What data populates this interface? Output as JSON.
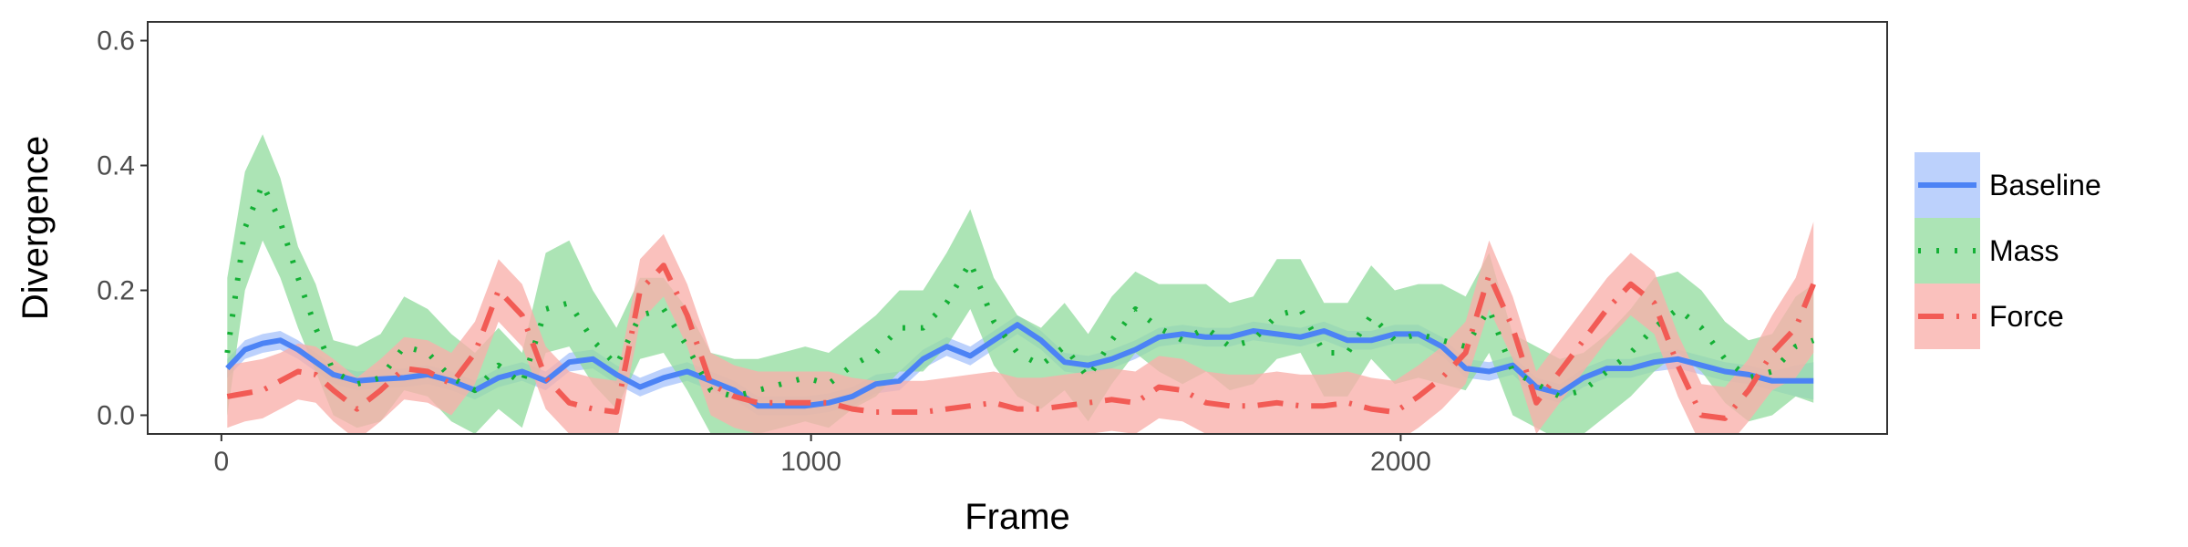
{
  "chart_data": {
    "type": "line",
    "title": "",
    "xlabel": "Frame",
    "ylabel": "Divergence",
    "xlim": [
      -125,
      2825
    ],
    "ylim": [
      -0.03,
      0.63
    ],
    "xticks": [
      0,
      1000,
      2000
    ],
    "xtick_labels": [
      "0",
      "1000",
      "2000"
    ],
    "yticks": [
      0.0,
      0.2,
      0.4,
      0.6
    ],
    "ytick_labels": [
      "0.0",
      "0.2",
      "0.4",
      "0.6"
    ],
    "grid": false,
    "legend_position": "right",
    "x": [
      10,
      40,
      70,
      100,
      130,
      160,
      190,
      230,
      270,
      310,
      350,
      390,
      430,
      470,
      510,
      550,
      590,
      630,
      670,
      710,
      750,
      790,
      830,
      870,
      910,
      950,
      990,
      1030,
      1070,
      1110,
      1150,
      1190,
      1230,
      1270,
      1310,
      1350,
      1390,
      1430,
      1470,
      1510,
      1550,
      1590,
      1630,
      1670,
      1710,
      1750,
      1790,
      1830,
      1870,
      1910,
      1950,
      1990,
      2030,
      2070,
      2110,
      2150,
      2190,
      2230,
      2270,
      2310,
      2350,
      2390,
      2430,
      2470,
      2510,
      2550,
      2590,
      2630,
      2670,
      2700
    ],
    "series": [
      {
        "name": "Baseline",
        "color": "#4c83f5",
        "fill": "#a9c4fb",
        "dash": "solid",
        "values": [
          0.075,
          0.105,
          0.115,
          0.12,
          0.105,
          0.085,
          0.065,
          0.055,
          0.058,
          0.06,
          0.065,
          0.055,
          0.04,
          0.06,
          0.07,
          0.055,
          0.085,
          0.09,
          0.065,
          0.045,
          0.06,
          0.07,
          0.055,
          0.04,
          0.015,
          0.015,
          0.015,
          0.02,
          0.03,
          0.05,
          0.055,
          0.09,
          0.11,
          0.095,
          0.12,
          0.145,
          0.12,
          0.085,
          0.08,
          0.09,
          0.105,
          0.125,
          0.13,
          0.125,
          0.125,
          0.135,
          0.13,
          0.125,
          0.135,
          0.12,
          0.12,
          0.13,
          0.13,
          0.11,
          0.075,
          0.07,
          0.08,
          0.045,
          0.035,
          0.06,
          0.075,
          0.075,
          0.085,
          0.09,
          0.08,
          0.07,
          0.065,
          0.055,
          0.055,
          0.055
        ],
        "lower": [
          0.06,
          0.09,
          0.1,
          0.105,
          0.09,
          0.07,
          0.05,
          0.04,
          0.043,
          0.045,
          0.05,
          0.04,
          0.025,
          0.045,
          0.055,
          0.04,
          0.07,
          0.075,
          0.05,
          0.03,
          0.045,
          0.055,
          0.04,
          0.025,
          0.0,
          0.0,
          0.0,
          0.005,
          0.015,
          0.035,
          0.04,
          0.075,
          0.095,
          0.08,
          0.105,
          0.13,
          0.105,
          0.07,
          0.065,
          0.075,
          0.09,
          0.11,
          0.115,
          0.11,
          0.11,
          0.12,
          0.115,
          0.11,
          0.12,
          0.105,
          0.105,
          0.115,
          0.115,
          0.095,
          0.06,
          0.055,
          0.065,
          0.03,
          0.02,
          0.045,
          0.06,
          0.06,
          0.07,
          0.075,
          0.065,
          0.055,
          0.05,
          0.04,
          0.03,
          0.025
        ],
        "upper": [
          0.09,
          0.12,
          0.13,
          0.135,
          0.12,
          0.1,
          0.08,
          0.07,
          0.073,
          0.075,
          0.08,
          0.07,
          0.055,
          0.075,
          0.085,
          0.07,
          0.1,
          0.105,
          0.08,
          0.06,
          0.075,
          0.085,
          0.07,
          0.055,
          0.03,
          0.03,
          0.03,
          0.035,
          0.045,
          0.065,
          0.07,
          0.105,
          0.125,
          0.11,
          0.135,
          0.16,
          0.135,
          0.1,
          0.095,
          0.105,
          0.12,
          0.14,
          0.145,
          0.14,
          0.14,
          0.15,
          0.145,
          0.14,
          0.15,
          0.135,
          0.135,
          0.145,
          0.145,
          0.125,
          0.09,
          0.085,
          0.095,
          0.06,
          0.05,
          0.075,
          0.09,
          0.09,
          0.1,
          0.105,
          0.095,
          0.085,
          0.08,
          0.07,
          0.08,
          0.085
        ]
      },
      {
        "name": "Mass",
        "color": "#14b035",
        "fill": "#95dda0",
        "dash": "dotted",
        "values": [
          0.1,
          0.3,
          0.37,
          0.31,
          0.22,
          0.14,
          0.07,
          0.05,
          0.06,
          0.11,
          0.1,
          0.06,
          0.04,
          0.08,
          0.05,
          0.17,
          0.18,
          0.12,
          0.08,
          0.16,
          0.17,
          0.11,
          0.04,
          0.03,
          0.04,
          0.05,
          0.06,
          0.05,
          0.08,
          0.1,
          0.14,
          0.14,
          0.18,
          0.245,
          0.15,
          0.1,
          0.08,
          0.11,
          0.06,
          0.12,
          0.17,
          0.14,
          0.12,
          0.14,
          0.11,
          0.12,
          0.16,
          0.17,
          0.1,
          0.1,
          0.16,
          0.12,
          0.13,
          0.12,
          0.11,
          0.17,
          0.07,
          0.05,
          0.03,
          0.04,
          0.07,
          0.1,
          0.14,
          0.17,
          0.14,
          0.09,
          0.06,
          0.07,
          0.11,
          0.12
        ],
        "lower": [
          0.0,
          0.2,
          0.28,
          0.22,
          0.14,
          0.07,
          0.0,
          -0.02,
          -0.01,
          0.04,
          0.03,
          -0.01,
          -0.03,
          0.01,
          -0.02,
          0.1,
          0.11,
          0.05,
          0.01,
          0.09,
          0.1,
          0.04,
          -0.03,
          -0.04,
          -0.03,
          -0.02,
          -0.01,
          -0.02,
          0.01,
          0.03,
          0.07,
          0.07,
          0.11,
          0.17,
          0.08,
          0.03,
          0.01,
          0.04,
          -0.01,
          0.05,
          0.1,
          0.07,
          0.05,
          0.07,
          0.04,
          0.05,
          0.09,
          0.1,
          0.03,
          0.03,
          0.09,
          0.05,
          0.06,
          0.05,
          0.04,
          0.1,
          0.0,
          -0.02,
          -0.04,
          -0.03,
          0.0,
          0.03,
          0.07,
          0.1,
          0.07,
          0.02,
          -0.01,
          0.0,
          0.03,
          0.02
        ],
        "upper": [
          0.22,
          0.39,
          0.45,
          0.38,
          0.27,
          0.21,
          0.12,
          0.11,
          0.13,
          0.19,
          0.17,
          0.13,
          0.1,
          0.14,
          0.1,
          0.26,
          0.28,
          0.2,
          0.14,
          0.22,
          0.22,
          0.17,
          0.1,
          0.09,
          0.09,
          0.1,
          0.11,
          0.1,
          0.13,
          0.16,
          0.2,
          0.2,
          0.26,
          0.33,
          0.22,
          0.16,
          0.14,
          0.18,
          0.13,
          0.19,
          0.23,
          0.21,
          0.21,
          0.21,
          0.18,
          0.19,
          0.25,
          0.25,
          0.18,
          0.18,
          0.24,
          0.2,
          0.21,
          0.21,
          0.19,
          0.26,
          0.13,
          0.11,
          0.09,
          0.1,
          0.13,
          0.17,
          0.22,
          0.23,
          0.2,
          0.15,
          0.12,
          0.13,
          0.19,
          0.21
        ]
      },
      {
        "name": "Force",
        "color": "#f25b55",
        "fill": "#f8b0ab",
        "dash": "dashdot",
        "values": [
          0.03,
          0.035,
          0.04,
          0.055,
          0.07,
          0.065,
          0.04,
          0.01,
          0.04,
          0.075,
          0.07,
          0.05,
          0.1,
          0.2,
          0.16,
          0.06,
          0.02,
          0.01,
          0.005,
          0.2,
          0.24,
          0.16,
          0.05,
          0.03,
          0.02,
          0.02,
          0.02,
          0.02,
          0.01,
          0.005,
          0.005,
          0.005,
          0.01,
          0.015,
          0.02,
          0.01,
          0.01,
          0.015,
          0.02,
          0.025,
          0.02,
          0.045,
          0.04,
          0.02,
          0.015,
          0.015,
          0.02,
          0.015,
          0.015,
          0.02,
          0.01,
          0.005,
          0.03,
          0.06,
          0.1,
          0.225,
          0.14,
          0.02,
          0.07,
          0.12,
          0.17,
          0.21,
          0.18,
          0.08,
          0.0,
          -0.005,
          0.04,
          0.1,
          0.14,
          0.21
        ],
        "lower": [
          -0.02,
          -0.01,
          -0.005,
          0.01,
          0.025,
          0.02,
          -0.01,
          -0.04,
          -0.01,
          0.025,
          0.02,
          0.0,
          0.05,
          0.15,
          0.11,
          0.01,
          -0.03,
          -0.04,
          -0.045,
          0.15,
          0.19,
          0.11,
          0.0,
          -0.02,
          -0.03,
          -0.03,
          -0.03,
          -0.03,
          -0.04,
          -0.045,
          -0.045,
          -0.045,
          -0.04,
          -0.035,
          -0.03,
          -0.04,
          -0.04,
          -0.035,
          -0.03,
          -0.025,
          -0.03,
          -0.005,
          -0.01,
          -0.03,
          -0.035,
          -0.035,
          -0.03,
          -0.035,
          -0.035,
          -0.03,
          -0.04,
          -0.045,
          -0.02,
          0.01,
          0.05,
          0.17,
          0.09,
          -0.03,
          0.02,
          0.07,
          0.12,
          0.16,
          0.13,
          0.03,
          -0.05,
          -0.055,
          -0.01,
          0.04,
          0.06,
          0.1
        ],
        "upper": [
          0.08,
          0.085,
          0.09,
          0.1,
          0.115,
          0.11,
          0.09,
          0.06,
          0.09,
          0.125,
          0.12,
          0.1,
          0.15,
          0.25,
          0.21,
          0.11,
          0.07,
          0.06,
          0.055,
          0.25,
          0.29,
          0.21,
          0.1,
          0.08,
          0.07,
          0.07,
          0.07,
          0.07,
          0.06,
          0.055,
          0.055,
          0.055,
          0.06,
          0.065,
          0.07,
          0.06,
          0.06,
          0.065,
          0.07,
          0.075,
          0.07,
          0.095,
          0.09,
          0.07,
          0.065,
          0.065,
          0.07,
          0.065,
          0.065,
          0.07,
          0.06,
          0.055,
          0.08,
          0.11,
          0.15,
          0.28,
          0.19,
          0.07,
          0.12,
          0.17,
          0.22,
          0.26,
          0.23,
          0.13,
          0.05,
          0.045,
          0.09,
          0.16,
          0.22,
          0.31
        ]
      }
    ]
  }
}
